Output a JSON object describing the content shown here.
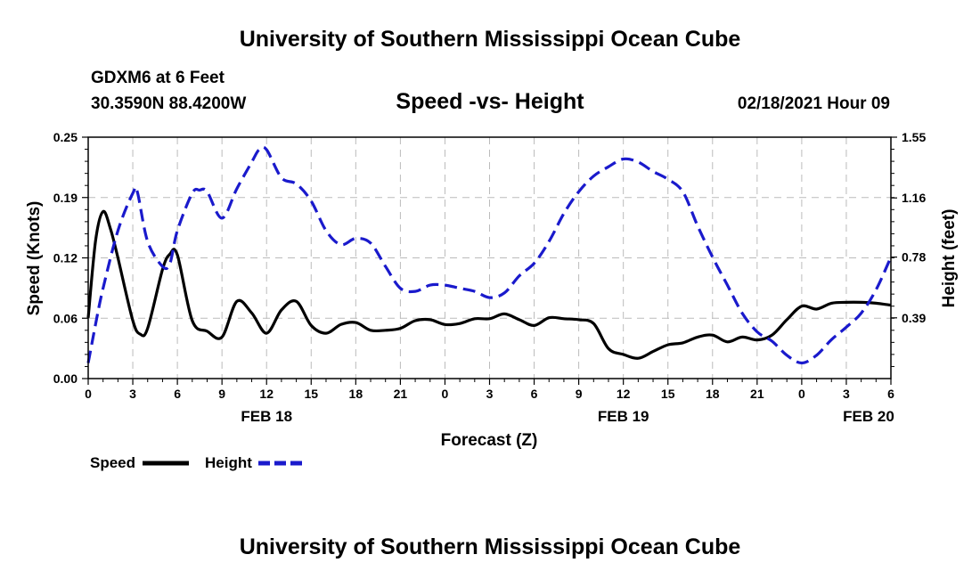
{
  "page": {
    "title_top": "University of Southern Mississippi Ocean Cube",
    "title_bottom": "University of Southern Mississippi Ocean Cube",
    "station": "GDXM6 at 6 Feet",
    "coordinates": "30.3590N 88.4200W",
    "datetime": "02/18/2021 Hour 09"
  },
  "colors": {
    "speed": "#000000",
    "height": "#1a1acc",
    "grid": "#bbbbbb"
  },
  "chart_data": {
    "type": "line",
    "title": "Speed -vs- Height",
    "xlabel": "Forecast (Z)",
    "ylabel": "Speed (Knots)",
    "ylabel_right": "Height (feet)",
    "x_range": [
      0,
      54
    ],
    "ylim": [
      0,
      0.25
    ],
    "ylim_right": [
      0.0,
      1.55
    ],
    "x_tick_positions": [
      0,
      3,
      6,
      9,
      12,
      15,
      18,
      21,
      24,
      27,
      30,
      33,
      36,
      39,
      42,
      45,
      48,
      51,
      54
    ],
    "x_tick_labels": [
      "0",
      "3",
      "6",
      "9",
      "12",
      "15",
      "18",
      "21",
      "0",
      "3",
      "6",
      "9",
      "12",
      "15",
      "18",
      "21",
      "0",
      "3",
      "6"
    ],
    "date_labels": [
      {
        "x": 12,
        "label": "FEB 18"
      },
      {
        "x": 36,
        "label": "FEB 19"
      },
      {
        "x": 52.5,
        "label": "FEB 20"
      }
    ],
    "y_ticks_left": [
      "0.00",
      "0.06",
      "0.12",
      "0.19",
      "0.25"
    ],
    "y_tick_values_left": [
      0,
      0.0625,
      0.125,
      0.1875,
      0.25
    ],
    "y_ticks_right": [
      "0.39",
      "0.78",
      "1.16",
      "1.55"
    ],
    "y_tick_values_right": [
      0.39,
      0.78,
      1.16,
      1.55
    ],
    "legend": [
      {
        "name": "Speed",
        "style": "solid"
      },
      {
        "name": "Height",
        "style": "dashed"
      }
    ],
    "series": [
      {
        "name": "Speed",
        "axis": "left",
        "x": [
          0,
          0.5,
          1,
          1.5,
          2,
          3,
          3.5,
          4,
          5,
          5.5,
          6,
          7,
          8,
          9,
          10,
          11,
          12,
          13,
          14,
          15,
          16,
          17,
          18,
          19,
          20,
          21,
          22,
          23,
          24,
          25,
          26,
          27,
          28,
          29,
          30,
          31,
          32,
          33,
          34,
          35,
          36,
          37,
          38,
          39,
          40,
          41,
          42,
          43,
          44,
          45,
          46,
          47,
          48,
          49,
          50,
          51,
          52,
          53,
          54
        ],
        "values": [
          0.063,
          0.143,
          0.173,
          0.155,
          0.125,
          0.06,
          0.046,
          0.052,
          0.113,
          0.129,
          0.128,
          0.06,
          0.049,
          0.043,
          0.08,
          0.068,
          0.047,
          0.071,
          0.08,
          0.055,
          0.047,
          0.056,
          0.058,
          0.05,
          0.05,
          0.052,
          0.06,
          0.061,
          0.056,
          0.057,
          0.062,
          0.062,
          0.067,
          0.061,
          0.055,
          0.063,
          0.062,
          0.061,
          0.057,
          0.031,
          0.025,
          0.021,
          0.028,
          0.035,
          0.037,
          0.043,
          0.045,
          0.038,
          0.043,
          0.04,
          0.045,
          0.061,
          0.075,
          0.072,
          0.078,
          0.079,
          0.079,
          0.078,
          0.076
        ]
      },
      {
        "name": "Height",
        "axis": "right",
        "x": [
          0,
          0.5,
          1,
          2,
          3,
          3.3,
          4,
          5,
          5.5,
          6,
          7,
          7.5,
          8,
          9,
          10,
          11,
          11.5,
          12,
          13,
          14,
          15,
          16,
          17,
          18,
          19,
          20,
          21,
          22,
          23,
          24,
          25,
          26,
          27,
          28,
          29,
          30,
          31,
          32,
          33,
          34,
          35,
          36,
          37,
          38,
          39,
          40,
          41,
          42,
          43,
          44,
          45,
          46,
          47,
          48,
          49,
          50,
          51,
          52,
          53,
          54
        ],
        "values": [
          0.1,
          0.35,
          0.58,
          0.95,
          1.19,
          1.2,
          0.88,
          0.72,
          0.74,
          0.95,
          1.19,
          1.21,
          1.2,
          1.03,
          1.22,
          1.39,
          1.47,
          1.47,
          1.29,
          1.25,
          1.14,
          0.95,
          0.86,
          0.9,
          0.87,
          0.72,
          0.58,
          0.56,
          0.6,
          0.6,
          0.58,
          0.56,
          0.52,
          0.55,
          0.66,
          0.74,
          0.88,
          1.06,
          1.2,
          1.3,
          1.36,
          1.41,
          1.39,
          1.33,
          1.28,
          1.2,
          0.98,
          0.78,
          0.6,
          0.42,
          0.3,
          0.24,
          0.15,
          0.1,
          0.15,
          0.25,
          0.33,
          0.42,
          0.57,
          0.78
        ]
      }
    ]
  }
}
